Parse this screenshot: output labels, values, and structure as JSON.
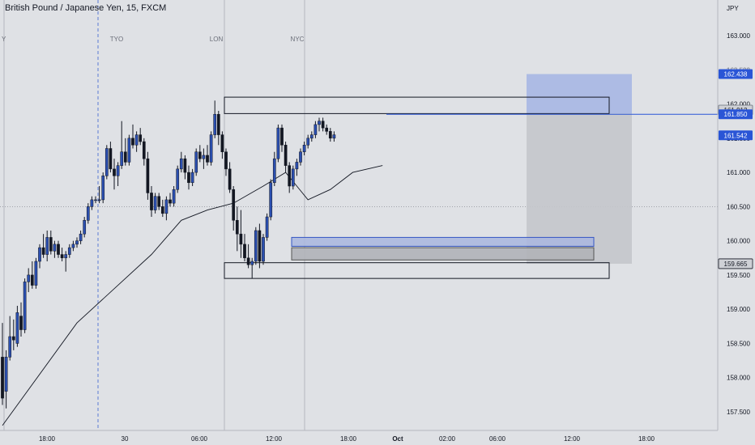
{
  "header": {
    "title": "British Pound / Japanese Yen, 15, FXCM"
  },
  "chart_data": {
    "type": "candlestick",
    "symbol": "British Pound / Japanese Yen",
    "timeframe": "15",
    "exchange": "FXCM",
    "currency_label": "JPY",
    "ylim": [
      157.25,
      163.35
    ],
    "y_ticks": [
      163.0,
      162.5,
      162.0,
      161.5,
      161.0,
      160.5,
      160.0,
      159.5,
      159.0,
      158.5,
      158.0,
      157.5
    ],
    "y_tick_labels": [
      "163.000",
      "162.500",
      "162.000",
      "161.500",
      "161.000",
      "160.500",
      "160.000",
      "159.500",
      "159.000",
      "158.500",
      "158.000",
      "157.500"
    ],
    "x_ticks": [
      "18:00",
      "30",
      "06:00",
      "12:00",
      "18:00",
      "Oct",
      "02:00",
      "06:00",
      "12:00",
      "18:00"
    ],
    "sessions": [
      "TYO",
      "LON",
      "NYC"
    ],
    "session_partial_left": "Y",
    "price_badges": [
      {
        "label": "162.438",
        "value": 162.438,
        "style": "blue-fill"
      },
      {
        "label": "161.912",
        "value": 161.912,
        "style": "gray-fill"
      },
      {
        "label": "161.850",
        "value": 161.85,
        "style": "blue-fill"
      },
      {
        "label": "161.542",
        "value": 161.542,
        "style": "blue-fill"
      },
      {
        "label": "159.665",
        "value": 159.665,
        "style": "dark-fill"
      }
    ],
    "hidden_badge_partial": "162.500",
    "horizontal_line": 161.85,
    "dotted_level": 160.5,
    "zones": [
      {
        "name": "supply-zone",
        "top": 162.1,
        "bottom": 161.86
      },
      {
        "name": "demand-zone",
        "top": 159.68,
        "bottom": 159.45
      },
      {
        "name": "order-block",
        "top": 160.05,
        "bottom": 159.92
      },
      {
        "name": "order-block-lower",
        "top": 159.9,
        "bottom": 159.72
      }
    ],
    "position": {
      "entry": 159.665,
      "target": 162.438
    },
    "candles": [
      [
        158.3,
        158.8,
        157.6,
        157.7
      ],
      [
        157.8,
        158.4,
        157.55,
        158.3
      ],
      [
        158.3,
        158.9,
        158.25,
        158.6
      ],
      [
        158.6,
        158.85,
        158.4,
        158.55
      ],
      [
        158.5,
        159.05,
        158.45,
        158.95
      ],
      [
        158.9,
        159.1,
        158.6,
        158.7
      ],
      [
        158.7,
        159.45,
        158.65,
        159.4
      ],
      [
        159.4,
        159.6,
        159.25,
        159.5
      ],
      [
        159.5,
        159.7,
        159.3,
        159.35
      ],
      [
        159.35,
        159.75,
        159.3,
        159.7
      ],
      [
        159.7,
        159.95,
        159.6,
        159.9
      ],
      [
        159.9,
        160.1,
        159.75,
        159.8
      ],
      [
        159.8,
        160.15,
        159.7,
        160.05
      ],
      [
        160.05,
        160.15,
        159.8,
        159.85
      ],
      [
        159.85,
        160.0,
        159.75,
        159.95
      ],
      [
        159.95,
        160.0,
        159.75,
        159.8
      ],
      [
        159.8,
        159.9,
        159.7,
        159.75
      ],
      [
        159.75,
        159.85,
        159.55,
        159.8
      ],
      [
        159.8,
        159.95,
        159.75,
        159.9
      ],
      [
        159.9,
        160.0,
        159.85,
        159.95
      ],
      [
        159.95,
        160.05,
        159.9,
        160.0
      ],
      [
        160.0,
        160.15,
        159.95,
        160.1
      ],
      [
        160.1,
        160.35,
        160.05,
        160.3
      ],
      [
        160.3,
        160.55,
        160.25,
        160.5
      ],
      [
        160.5,
        160.65,
        160.45,
        160.6
      ],
      [
        160.6,
        160.65,
        160.55,
        160.6
      ],
      [
        160.6,
        160.8,
        160.55,
        160.6
      ],
      [
        160.6,
        161.0,
        160.55,
        160.95
      ],
      [
        160.95,
        161.4,
        160.9,
        161.35
      ],
      [
        161.35,
        161.45,
        161.0,
        161.05
      ],
      [
        161.05,
        161.2,
        160.75,
        160.95
      ],
      [
        160.95,
        161.15,
        160.8,
        161.1
      ],
      [
        161.1,
        161.75,
        161.05,
        161.3
      ],
      [
        161.3,
        161.5,
        161.1,
        161.15
      ],
      [
        161.15,
        161.55,
        161.1,
        161.5
      ],
      [
        161.5,
        161.7,
        161.35,
        161.4
      ],
      [
        161.4,
        161.6,
        161.3,
        161.55
      ],
      [
        161.55,
        161.65,
        161.4,
        161.45
      ],
      [
        161.45,
        161.5,
        161.1,
        161.2
      ],
      [
        161.2,
        161.3,
        160.6,
        160.7
      ],
      [
        160.7,
        160.8,
        160.35,
        160.45
      ],
      [
        160.45,
        160.7,
        160.4,
        160.65
      ],
      [
        160.65,
        160.7,
        160.45,
        160.5
      ],
      [
        160.5,
        160.6,
        160.35,
        160.4
      ],
      [
        160.4,
        160.65,
        160.3,
        160.6
      ],
      [
        160.6,
        160.7,
        160.5,
        160.55
      ],
      [
        160.55,
        160.8,
        160.5,
        160.75
      ],
      [
        160.75,
        161.1,
        160.7,
        161.05
      ],
      [
        161.05,
        161.3,
        161.0,
        161.2
      ],
      [
        161.2,
        161.25,
        160.9,
        161.0
      ],
      [
        161.0,
        161.1,
        160.75,
        160.85
      ],
      [
        160.85,
        161.05,
        160.8,
        161.0
      ],
      [
        161.0,
        161.35,
        160.95,
        161.3
      ],
      [
        161.3,
        161.4,
        161.15,
        161.2
      ],
      [
        161.2,
        161.35,
        161.05,
        161.25
      ],
      [
        161.25,
        161.4,
        161.1,
        161.15
      ],
      [
        161.15,
        161.6,
        161.1,
        161.55
      ],
      [
        161.55,
        162.05,
        161.5,
        161.85
      ],
      [
        161.85,
        161.9,
        161.4,
        161.55
      ],
      [
        161.55,
        161.6,
        161.2,
        161.3
      ],
      [
        161.3,
        161.35,
        160.95,
        161.05
      ],
      [
        161.05,
        161.15,
        160.7,
        160.75
      ],
      [
        160.75,
        160.8,
        160.15,
        160.3
      ],
      [
        160.3,
        160.5,
        159.85,
        160.1
      ],
      [
        160.1,
        160.45,
        159.75,
        159.95
      ],
      [
        159.95,
        160.1,
        159.7,
        159.75
      ],
      [
        159.75,
        159.95,
        159.6,
        159.65
      ],
      [
        159.65,
        159.75,
        159.45,
        159.7
      ],
      [
        159.7,
        160.2,
        159.65,
        160.15
      ],
      [
        160.15,
        160.25,
        159.6,
        159.7
      ],
      [
        159.7,
        160.1,
        159.65,
        160.05
      ],
      [
        160.05,
        160.4,
        160.0,
        160.35
      ],
      [
        160.35,
        160.9,
        160.3,
        160.85
      ],
      [
        160.85,
        161.3,
        160.8,
        161.2
      ],
      [
        161.2,
        161.7,
        161.15,
        161.65
      ],
      [
        161.65,
        161.7,
        161.3,
        161.4
      ],
      [
        161.4,
        161.45,
        161.0,
        161.1
      ],
      [
        161.1,
        161.15,
        160.7,
        160.8
      ],
      [
        160.8,
        161.1,
        160.75,
        161.05
      ],
      [
        161.05,
        161.2,
        160.95,
        161.15
      ],
      [
        161.15,
        161.35,
        161.1,
        161.3
      ],
      [
        161.3,
        161.45,
        161.25,
        161.4
      ],
      [
        161.4,
        161.55,
        161.35,
        161.5
      ],
      [
        161.5,
        161.6,
        161.45,
        161.55
      ],
      [
        161.55,
        161.75,
        161.5,
        161.7
      ],
      [
        161.7,
        161.8,
        161.6,
        161.75
      ],
      [
        161.75,
        161.8,
        161.6,
        161.65
      ],
      [
        161.65,
        161.7,
        161.55,
        161.6
      ],
      [
        161.6,
        161.65,
        161.45,
        161.5
      ],
      [
        161.5,
        161.6,
        161.45,
        161.55
      ]
    ],
    "moving_average": [
      [
        0,
        157.3
      ],
      [
        20,
        158.8
      ],
      [
        40,
        159.8
      ],
      [
        48,
        160.3
      ],
      [
        55,
        160.45
      ],
      [
        62,
        160.55
      ],
      [
        70,
        160.8
      ],
      [
        76,
        161.0
      ],
      [
        79,
        160.8
      ],
      [
        82,
        160.6
      ],
      [
        88,
        160.75
      ],
      [
        94,
        161.0
      ],
      [
        102,
        161.1
      ]
    ]
  }
}
